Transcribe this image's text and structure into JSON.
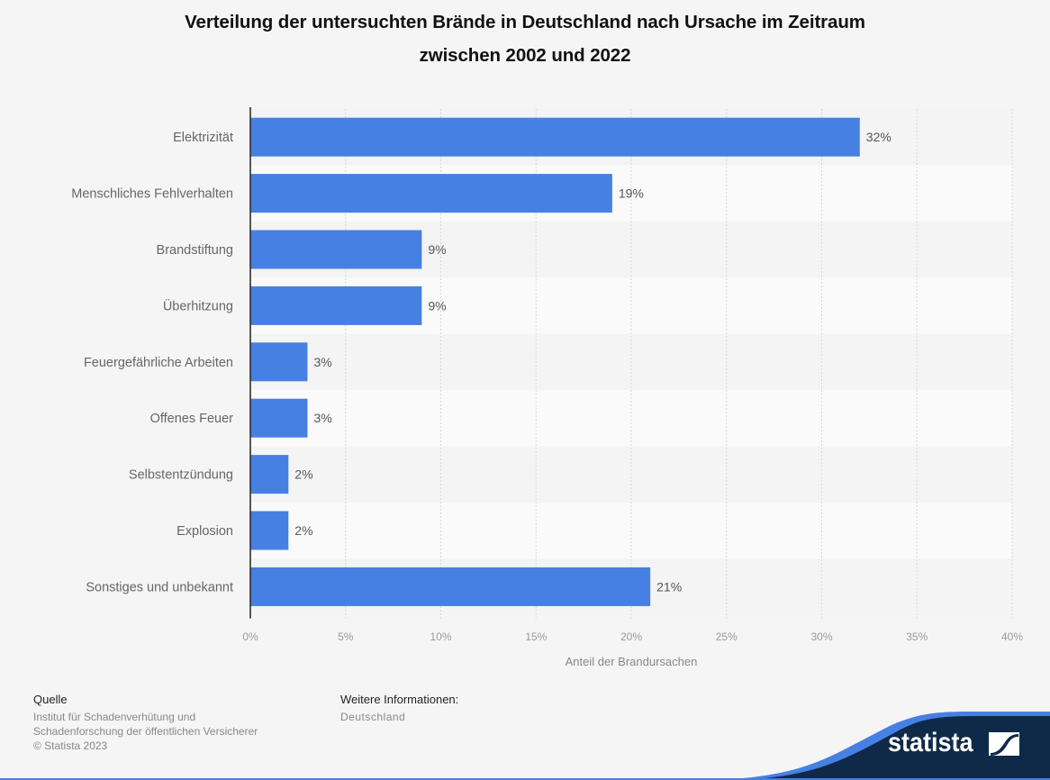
{
  "chart_data": {
    "type": "bar",
    "orientation": "horizontal",
    "title": "Verteilung der untersuchten Brände in Deutschland nach Ursache im Zeitraum zwischen 2002 und 2022",
    "title_lines": [
      "Verteilung der untersuchten Brände in Deutschland nach Ursache im Zeitraum",
      "zwischen 2002 und 2022"
    ],
    "categories": [
      "Elektrizität",
      "Menschliches Fehlverhalten",
      "Brandstiftung",
      "Überhitzung",
      "Feuergefährliche Arbeiten",
      "Offenes Feuer",
      "Selbstentzündung",
      "Explosion",
      "Sonstiges und unbekannt"
    ],
    "values": [
      32,
      19,
      9,
      9,
      3,
      3,
      2,
      2,
      21
    ],
    "value_labels": [
      "32%",
      "19%",
      "9%",
      "9%",
      "3%",
      "3%",
      "2%",
      "2%",
      "21%"
    ],
    "xlabel": "Anteil der Brandursachen",
    "ylabel": "",
    "xlim": [
      0,
      40
    ],
    "xticks": [
      0,
      5,
      10,
      15,
      20,
      25,
      30,
      35,
      40
    ],
    "xtick_labels": [
      "0%",
      "5%",
      "10%",
      "15%",
      "20%",
      "25%",
      "30%",
      "35%",
      "40%"
    ],
    "grid": true,
    "bar_color": "#4680e2"
  },
  "footer": {
    "source_label": "Quelle",
    "source_lines": [
      "Institut für Schadenverhütung und",
      "Schadenforschung der öffentlichen Versicherer",
      "© Statista 2023"
    ],
    "info_label": "Weitere Informationen:",
    "info_text": "Deutschland"
  },
  "brand": {
    "name": "statista",
    "colors": {
      "navy": "#0f2a48",
      "accent": "#4680e2"
    }
  }
}
